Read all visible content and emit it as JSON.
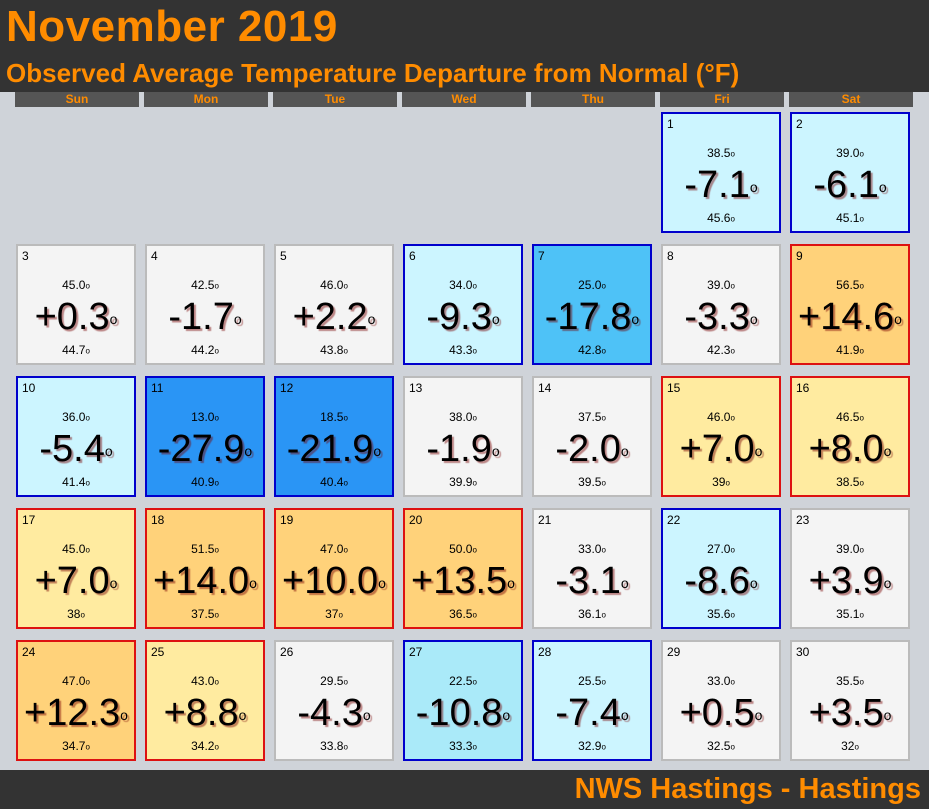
{
  "header": {
    "title": "November 2019",
    "subtitle": "Observed Average Temperature Departure from Normal (°F)"
  },
  "weekdays": [
    "Sun",
    "Mon",
    "Tue",
    "Wed",
    "Thu",
    "Fri",
    "Sat"
  ],
  "colors": {
    "header_bg": "#333333",
    "accent": "#ff8c00",
    "neutral": "#f4f4f4",
    "cold_1": "#ccf5ff",
    "cold_2": "#aaeaf9",
    "cold_3": "#4ec2f7",
    "cold_4": "#2a95f5",
    "warm_1": "#ffeba0",
    "warm_2": "#ffd27a",
    "border_cold": "#0000cc",
    "border_warm": "#dd1111",
    "border_neutral": "#bbbbbb"
  },
  "days": [
    {
      "day": "1",
      "max": "38.5",
      "dep": "-7.1",
      "min": "45.6",
      "fill": "cold_1",
      "border": "border_cold"
    },
    {
      "day": "2",
      "max": "39.0",
      "dep": "-6.1",
      "min": "45.1",
      "fill": "cold_1",
      "border": "border_cold"
    },
    {
      "day": "3",
      "max": "45.0",
      "dep": "+0.3",
      "min": "44.7",
      "fill": "neutral",
      "border": "border_neutral"
    },
    {
      "day": "4",
      "max": "42.5",
      "dep": "-1.7",
      "min": "44.2",
      "fill": "neutral",
      "border": "border_neutral"
    },
    {
      "day": "5",
      "max": "46.0",
      "dep": "+2.2",
      "min": "43.8",
      "fill": "neutral",
      "border": "border_neutral"
    },
    {
      "day": "6",
      "max": "34.0",
      "dep": "-9.3",
      "min": "43.3",
      "fill": "cold_1",
      "border": "border_cold"
    },
    {
      "day": "7",
      "max": "25.0",
      "dep": "-17.8",
      "min": "42.8",
      "fill": "cold_3",
      "border": "border_cold"
    },
    {
      "day": "8",
      "max": "39.0",
      "dep": "-3.3",
      "min": "42.3",
      "fill": "neutral",
      "border": "border_neutral"
    },
    {
      "day": "9",
      "max": "56.5",
      "dep": "+14.6",
      "min": "41.9",
      "fill": "warm_2",
      "border": "border_warm"
    },
    {
      "day": "10",
      "max": "36.0",
      "dep": "-5.4",
      "min": "41.4",
      "fill": "cold_1",
      "border": "border_cold"
    },
    {
      "day": "11",
      "max": "13.0",
      "dep": "-27.9",
      "min": "40.9",
      "fill": "cold_4",
      "border": "border_cold"
    },
    {
      "day": "12",
      "max": "18.5",
      "dep": "-21.9",
      "min": "40.4",
      "fill": "cold_4",
      "border": "border_cold"
    },
    {
      "day": "13",
      "max": "38.0",
      "dep": "-1.9",
      "min": "39.9",
      "fill": "neutral",
      "border": "border_neutral"
    },
    {
      "day": "14",
      "max": "37.5",
      "dep": "-2.0",
      "min": "39.5",
      "fill": "neutral",
      "border": "border_neutral"
    },
    {
      "day": "15",
      "max": "46.0",
      "dep": "+7.0",
      "min": "39",
      "fill": "warm_1",
      "border": "border_warm"
    },
    {
      "day": "16",
      "max": "46.5",
      "dep": "+8.0",
      "min": "38.5",
      "fill": "warm_1",
      "border": "border_warm"
    },
    {
      "day": "17",
      "max": "45.0",
      "dep": "+7.0",
      "min": "38",
      "fill": "warm_1",
      "border": "border_warm"
    },
    {
      "day": "18",
      "max": "51.5",
      "dep": "+14.0",
      "min": "37.5",
      "fill": "warm_2",
      "border": "border_warm"
    },
    {
      "day": "19",
      "max": "47.0",
      "dep": "+10.0",
      "min": "37",
      "fill": "warm_2",
      "border": "border_warm"
    },
    {
      "day": "20",
      "max": "50.0",
      "dep": "+13.5",
      "min": "36.5",
      "fill": "warm_2",
      "border": "border_warm"
    },
    {
      "day": "21",
      "max": "33.0",
      "dep": "-3.1",
      "min": "36.1",
      "fill": "neutral",
      "border": "border_neutral"
    },
    {
      "day": "22",
      "max": "27.0",
      "dep": "-8.6",
      "min": "35.6",
      "fill": "cold_1",
      "border": "border_cold"
    },
    {
      "day": "23",
      "max": "39.0",
      "dep": "+3.9",
      "min": "35.1",
      "fill": "neutral",
      "border": "border_neutral"
    },
    {
      "day": "24",
      "max": "47.0",
      "dep": "+12.3",
      "min": "34.7",
      "fill": "warm_2",
      "border": "border_warm"
    },
    {
      "day": "25",
      "max": "43.0",
      "dep": "+8.8",
      "min": "34.2",
      "fill": "warm_1",
      "border": "border_warm"
    },
    {
      "day": "26",
      "max": "29.5",
      "dep": "-4.3",
      "min": "33.8",
      "fill": "neutral",
      "border": "border_neutral"
    },
    {
      "day": "27",
      "max": "22.5",
      "dep": "-10.8",
      "min": "33.3",
      "fill": "cold_2",
      "border": "border_cold"
    },
    {
      "day": "28",
      "max": "25.5",
      "dep": "-7.4",
      "min": "32.9",
      "fill": "cold_1",
      "border": "border_cold"
    },
    {
      "day": "29",
      "max": "33.0",
      "dep": "+0.5",
      "min": "32.5",
      "fill": "neutral",
      "border": "border_neutral"
    },
    {
      "day": "30",
      "max": "35.5",
      "dep": "+3.5",
      "min": "32",
      "fill": "neutral",
      "border": "border_neutral"
    }
  ],
  "footer": {
    "text": "NWS Hastings - Hastings"
  }
}
